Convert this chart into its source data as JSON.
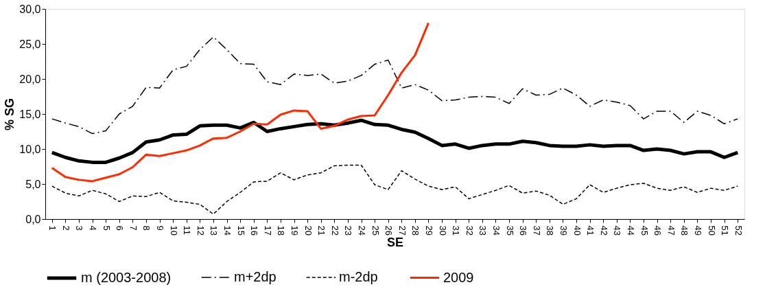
{
  "chart_data": {
    "type": "line",
    "xlabel": "SE",
    "ylabel": "% SG",
    "categories": [
      "1",
      "2",
      "3",
      "4",
      "5",
      "6",
      "7",
      "8",
      "9",
      "10",
      "11",
      "12",
      "13",
      "14",
      "15",
      "16",
      "17",
      "18",
      "19",
      "20",
      "21",
      "22",
      "23",
      "24",
      "25",
      "26",
      "27",
      "28",
      "29",
      "30",
      "31",
      "32",
      "33",
      "34",
      "35",
      "36",
      "37",
      "38",
      "39",
      "40",
      "41",
      "42",
      "43",
      "44",
      "45",
      "46",
      "47",
      "48",
      "49",
      "50",
      "51",
      "52"
    ],
    "ylim": [
      0,
      30
    ],
    "yticks": [
      {
        "value": 0,
        "label": "0,0"
      },
      {
        "value": 5,
        "label": "5,0"
      },
      {
        "value": 10,
        "label": "10,0"
      },
      {
        "value": 15,
        "label": "15,0"
      },
      {
        "value": 20,
        "label": "20,0"
      },
      {
        "value": 25,
        "label": "25,0"
      },
      {
        "value": 30,
        "label": "30,0"
      }
    ],
    "grid": false,
    "legend": "bottom",
    "marker": "none",
    "series": [
      {
        "name": "m (2003-2008)",
        "color": "#000000",
        "line_style": "solid",
        "values": [
          9.5,
          8.8,
          8.3,
          8.1,
          8.1,
          8.7,
          9.5,
          11.0,
          11.3,
          12.0,
          12.1,
          13.3,
          13.4,
          13.4,
          13.0,
          13.8,
          12.5,
          12.9,
          13.2,
          13.5,
          13.6,
          13.4,
          13.7,
          14.1,
          13.5,
          13.4,
          12.8,
          12.4,
          11.5,
          10.5,
          10.7,
          10.1,
          10.5,
          10.7,
          10.7,
          11.1,
          10.9,
          10.5,
          10.4,
          10.4,
          10.6,
          10.4,
          10.5,
          10.5,
          9.8,
          10.0,
          9.8,
          9.3,
          9.6,
          9.6,
          8.8,
          9.5
        ]
      },
      {
        "name": "m+2dp",
        "color": "#000000",
        "line_style": "dashdot",
        "values": [
          14.3,
          13.7,
          13.2,
          12.2,
          12.6,
          15.0,
          16.1,
          18.8,
          18.7,
          21.3,
          21.8,
          24.2,
          26.0,
          24.2,
          22.2,
          22.1,
          19.6,
          19.2,
          20.7,
          20.5,
          20.7,
          19.4,
          19.7,
          20.5,
          22.1,
          22.7,
          18.7,
          19.2,
          18.4,
          16.9,
          17.0,
          17.4,
          17.5,
          17.4,
          16.5,
          18.6,
          17.7,
          17.8,
          18.7,
          17.7,
          16.1,
          17.0,
          16.7,
          16.2,
          14.3,
          15.4,
          15.4,
          13.8,
          15.4,
          14.8,
          13.6,
          14.3
        ]
      },
      {
        "name": "m-2dp",
        "color": "#000000",
        "line_style": "dashed",
        "values": [
          4.7,
          3.7,
          3.3,
          4.1,
          3.6,
          2.5,
          3.3,
          3.2,
          3.8,
          2.6,
          2.4,
          2.1,
          0.7,
          2.5,
          3.8,
          5.3,
          5.4,
          6.6,
          5.6,
          6.3,
          6.6,
          7.6,
          7.7,
          7.7,
          4.9,
          4.2,
          6.9,
          5.7,
          4.7,
          4.2,
          4.6,
          2.9,
          3.5,
          4.1,
          4.8,
          3.7,
          4.0,
          3.4,
          2.1,
          2.9,
          4.9,
          3.8,
          4.4,
          4.9,
          5.1,
          4.4,
          4.1,
          4.6,
          3.8,
          4.4,
          4.1,
          4.7
        ]
      },
      {
        "name": "2009",
        "color": "#ff2a00",
        "line_style": "solid",
        "values": [
          7.3,
          6.0,
          5.6,
          5.4,
          5.9,
          6.4,
          7.4,
          9.2,
          9.0,
          9.4,
          9.8,
          10.5,
          11.5,
          11.6,
          12.5,
          13.6,
          13.5,
          14.9,
          15.5,
          15.4,
          12.9,
          13.3,
          14.2,
          14.7,
          14.8,
          17.7,
          20.9,
          23.4,
          28.0,
          null,
          null,
          null,
          null,
          null,
          null,
          null,
          null,
          null,
          null,
          null,
          null,
          null,
          null,
          null,
          null,
          null,
          null,
          null,
          null,
          null,
          null,
          null
        ]
      }
    ]
  }
}
